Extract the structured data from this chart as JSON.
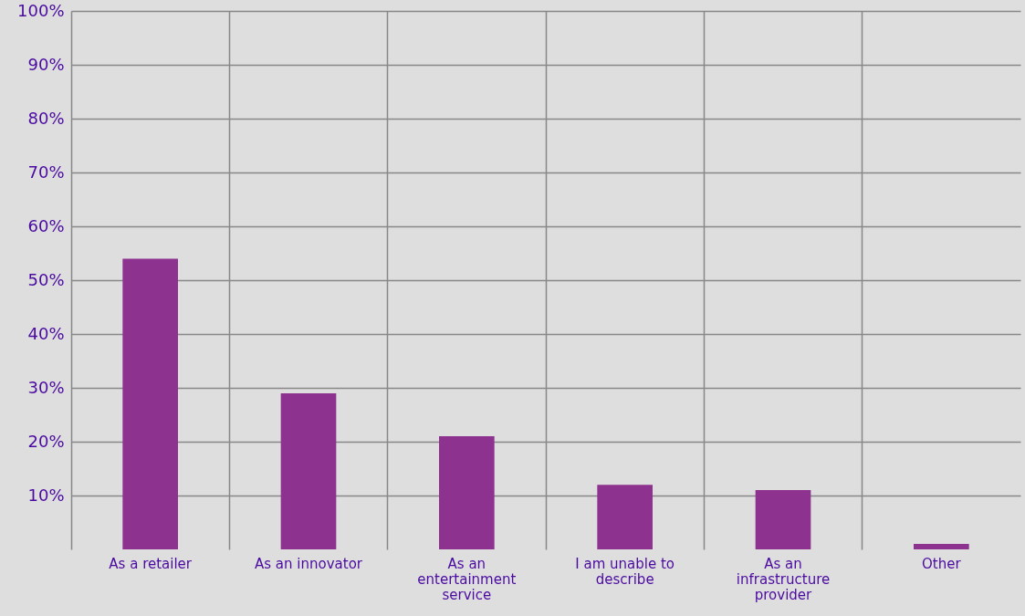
{
  "chart_data": {
    "type": "bar",
    "categories": [
      "As a retailer",
      "As an innovator",
      "As an entertainment service",
      "I am unable to describe",
      "As an infrastructure provider",
      "Other"
    ],
    "values": [
      54,
      29,
      21,
      12,
      11,
      1
    ],
    "color": "#8e3290",
    "ylim": [
      0,
      100
    ],
    "yticks": [
      {
        "value": 10,
        "label": "10%"
      },
      {
        "value": 20,
        "label": "20%"
      },
      {
        "value": 30,
        "label": "30%"
      },
      {
        "value": 40,
        "label": "40%"
      },
      {
        "value": 50,
        "label": "50%"
      },
      {
        "value": 60,
        "label": "60%"
      },
      {
        "value": 70,
        "label": "70%"
      },
      {
        "value": 80,
        "label": "80%"
      },
      {
        "value": 90,
        "label": "90%"
      },
      {
        "value": 100,
        "label": "100%"
      }
    ],
    "grid": true
  }
}
